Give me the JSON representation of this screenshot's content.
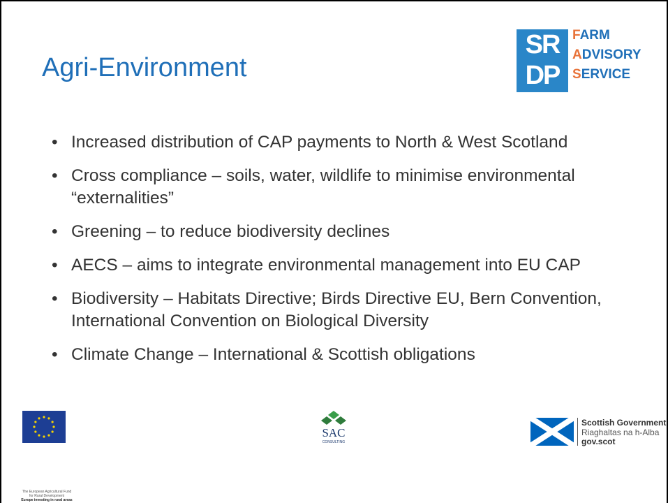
{
  "header": {
    "title": "Agri-Environment"
  },
  "logo": {
    "mark_top": "SR",
    "mark_bottom": "DP",
    "words": [
      "FARM",
      "ADVISORY",
      "SERVICE"
    ]
  },
  "bullets": [
    "Increased distribution of CAP payments to North & West Scotland",
    "Cross compliance – soils, water, wildlife to minimise environmental “externalities”",
    "Greening – to reduce biodiversity declines",
    "AECS – aims to integrate environmental management into EU CAP",
    "Biodiversity – Habitats Directive; Birds Directive EU, Bern Convention, International Convention on Biological Diversity",
    "Climate Change – International & Scottish obligations"
  ],
  "footer": {
    "eu": {
      "line1": "The European Agricultural Fund",
      "line2": "for Rural Development",
      "line3": "Europe investing in rural areas"
    },
    "sac": {
      "name": "SAC",
      "sub": "CONSULTING"
    },
    "gov": {
      "line1": "Scottish Government",
      "line2": "Riaghaltas na h-Alba",
      "line3": "gov.scot"
    }
  }
}
